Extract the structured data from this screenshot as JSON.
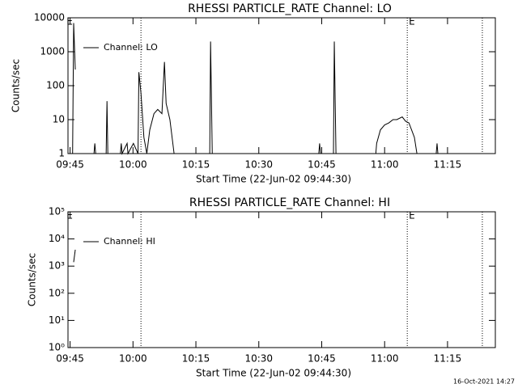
{
  "chart_data": [
    {
      "type": "line",
      "title": "RHESSI PARTICLE_RATE Channel: LO",
      "xlabel": "Start Time (22-Jun-02 09:44:30)",
      "ylabel": "Counts/sec",
      "x": [
        585.6,
        585.85,
        586.24,
        586.4,
        590.7,
        590.9,
        591.1,
        591.3,
        593.6,
        593.8,
        594.0,
        594.2,
        597.0,
        597.2,
        597.4,
        598.6,
        598.8,
        600.1,
        601.2,
        601.4,
        601.9,
        602.6,
        603.3,
        604.0,
        605.0,
        605.9,
        606.9,
        607.5,
        607.9,
        608.8,
        609.8,
        610.0,
        618.3,
        618.5,
        618.9,
        619.1,
        644.3,
        644.5,
        644.7,
        644.9,
        647.8,
        648.0,
        648.4,
        648.6,
        657.9,
        658.1,
        659.0,
        660.0,
        661.0,
        662.0,
        662.9,
        664.2,
        665.0,
        665.8,
        667.1,
        667.7,
        667.9,
        672.3,
        672.5,
        672.7
      ],
      "series": [
        {
          "name": "Channel: LO",
          "color": "#000000",
          "values": [
            1,
            7000,
            300,
            null,
            1,
            2,
            1,
            null,
            1,
            35,
            1,
            null,
            1,
            2,
            1,
            2,
            1,
            2,
            1,
            250,
            60,
            3,
            1,
            5,
            15,
            20,
            15,
            500,
            30,
            10,
            1,
            null,
            1,
            2000,
            1,
            null,
            1,
            2,
            1,
            null,
            1,
            2000,
            1,
            null,
            1,
            2,
            5,
            7,
            8,
            10,
            10,
            12,
            9,
            8,
            3,
            1,
            null,
            1,
            2,
            1
          ]
        }
      ],
      "xlim": [
        584.5,
        686.4
      ],
      "xticks": [
        {
          "value": 585,
          "label": "09:45"
        },
        {
          "value": 600,
          "label": "10:00"
        },
        {
          "value": 615,
          "label": "10:15"
        },
        {
          "value": 630,
          "label": "10:30"
        },
        {
          "value": 645,
          "label": "10:45"
        },
        {
          "value": 660,
          "label": "11:00"
        },
        {
          "value": 675,
          "label": "11:15"
        }
      ],
      "ylim": [
        1,
        10000
      ],
      "yticks": [
        1,
        10,
        100,
        1000,
        10000
      ],
      "log_y": true,
      "vlines": [
        601.9,
        665.4,
        683.3
      ],
      "annotations": [
        {
          "x": 584.9,
          "text": "E"
        },
        {
          "x": 666.5,
          "text": "E"
        }
      ]
    },
    {
      "type": "line",
      "title": "RHESSI PARTICLE_RATE Channel: HI",
      "xlabel": "Start Time (22-Jun-02 09:44:30)",
      "ylabel": "Counts/sec",
      "x": [
        585.85,
        586.24
      ],
      "series": [
        {
          "name": "Channel: HI",
          "color": "#000000",
          "values": [
            1400,
            4000
          ]
        }
      ],
      "xlim": [
        584.5,
        686.4
      ],
      "xticks": [
        {
          "value": 585,
          "label": "09:45"
        },
        {
          "value": 600,
          "label": "10:00"
        },
        {
          "value": 615,
          "label": "10:15"
        },
        {
          "value": 630,
          "label": "10:30"
        },
        {
          "value": 645,
          "label": "10:45"
        },
        {
          "value": 660,
          "label": "11:00"
        },
        {
          "value": 675,
          "label": "11:15"
        }
      ],
      "ylim": [
        1,
        100000
      ],
      "yticks": [
        {
          "value": 1,
          "label": "10⁰"
        },
        {
          "value": 10,
          "label": "10¹"
        },
        {
          "value": 100,
          "label": "10²"
        },
        {
          "value": 1000,
          "label": "10³"
        },
        {
          "value": 10000,
          "label": "10⁴"
        },
        {
          "value": 100000,
          "label": "10⁵"
        }
      ],
      "log_y": true,
      "vlines": [
        601.9,
        665.4,
        683.3
      ],
      "annotations": [
        {
          "x": 584.9,
          "text": "E"
        },
        {
          "x": 666.5,
          "text": "E"
        }
      ]
    }
  ],
  "footer": "16-Oct-2021 14:27"
}
